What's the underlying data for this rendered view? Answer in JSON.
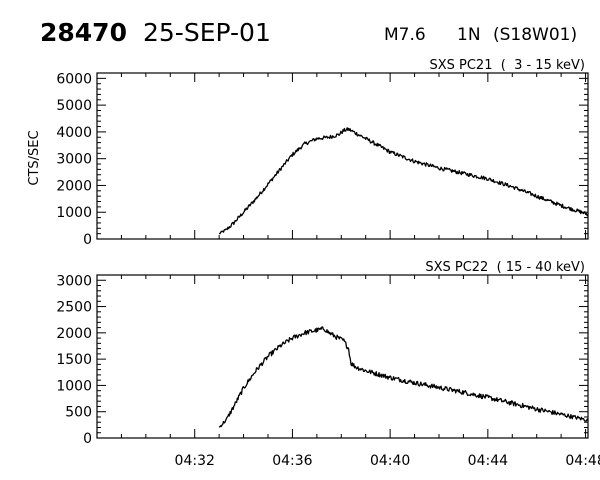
{
  "header": {
    "event_number": "28470",
    "date": "25-SEP-01",
    "flare_class": "M7.6",
    "optical_class": "1N",
    "location": "(S18W01)"
  },
  "chart_data": [
    {
      "type": "line",
      "title": "SXS PC21  (  3 - 15 keV)",
      "ylabel": "CTS/SEC",
      "xlabel": "",
      "x_unit": "UT minutes after 04:00",
      "xlim": [
        28.0,
        48.1
      ],
      "ylim": [
        0,
        6200
      ],
      "yticks": [
        0,
        1000,
        2000,
        3000,
        4000,
        5000,
        6000
      ],
      "ytick_labels": [
        "0",
        "1000",
        "2000",
        "3000",
        "4000",
        "5000",
        "6000"
      ],
      "xtick_labels": [],
      "x_major_ticks": [
        32,
        36,
        40,
        44,
        48
      ],
      "x_minor_ticks": [
        29,
        30,
        31,
        33,
        34,
        35,
        37,
        38,
        39,
        41,
        42,
        43,
        45,
        46,
        47
      ],
      "series": [
        {
          "x": [
            33.0,
            33.3,
            33.6,
            34.0,
            34.5,
            35.0,
            35.5,
            36.0,
            36.5,
            37.0,
            37.5,
            37.9,
            38.1,
            38.3,
            38.6,
            39.0,
            39.5,
            40.0,
            41.0,
            42.0,
            43.0,
            44.0,
            45.0,
            46.0,
            47.0,
            48.0,
            48.1
          ],
          "y": [
            200,
            350,
            600,
            1000,
            1500,
            2050,
            2600,
            3150,
            3550,
            3750,
            3800,
            3900,
            4050,
            4100,
            3950,
            3750,
            3500,
            3250,
            2900,
            2650,
            2450,
            2250,
            1950,
            1600,
            1250,
            950,
            900
          ],
          "noise": 70
        }
      ]
    },
    {
      "type": "line",
      "title": "SXS PC22  ( 15 - 40 keV)",
      "ylabel": "",
      "xlabel": "",
      "x_unit": "UT minutes after 04:00",
      "xlim": [
        28.0,
        48.1
      ],
      "ylim": [
        0,
        3100
      ],
      "yticks": [
        0,
        500,
        1000,
        1500,
        2000,
        2500,
        3000
      ],
      "ytick_labels": [
        "0",
        "500",
        "1000",
        "1500",
        "2000",
        "2500",
        "3000"
      ],
      "xtick_labels": [
        "04:32",
        "04:36",
        "04:40",
        "04:44",
        "04:48"
      ],
      "x_major_ticks": [
        32,
        36,
        40,
        44,
        48
      ],
      "x_minor_ticks": [
        29,
        30,
        31,
        33,
        34,
        35,
        37,
        38,
        39,
        41,
        42,
        43,
        45,
        46,
        47
      ],
      "series": [
        {
          "x": [
            33.0,
            33.3,
            33.6,
            34.0,
            34.5,
            35.0,
            35.5,
            36.0,
            36.5,
            37.0,
            37.3,
            37.5,
            37.8,
            38.1,
            38.3,
            38.4,
            38.6,
            39.0,
            40.0,
            41.0,
            42.0,
            43.0,
            44.0,
            45.0,
            46.0,
            47.0,
            48.0,
            48.1
          ],
          "y": [
            200,
            350,
            600,
            950,
            1280,
            1550,
            1750,
            1900,
            2000,
            2050,
            2080,
            2000,
            1920,
            1850,
            1700,
            1420,
            1350,
            1280,
            1150,
            1050,
            960,
            870,
            770,
            660,
            550,
            450,
            350,
            330
          ],
          "noise": 45
        }
      ]
    }
  ]
}
